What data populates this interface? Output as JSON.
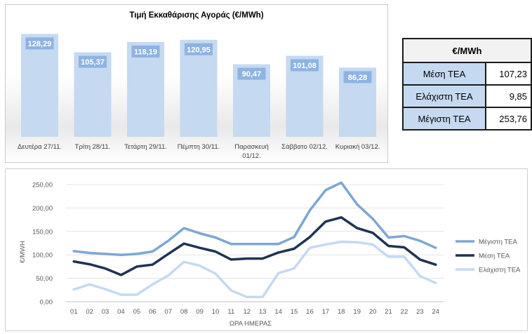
{
  "chart_data": [
    {
      "type": "bar",
      "title": "Τιμή Εκκαθάρισης Αγοράς (€/MWh)",
      "categories": [
        [
          "Δευτέρα 27/11."
        ],
        [
          "Τρίτη 28/11."
        ],
        [
          "Τετάρτη 29/11."
        ],
        [
          "Πέμπτη 30/11."
        ],
        [
          "Παρασκευή",
          "01/12."
        ],
        [
          "Σάββατο 02/12."
        ],
        [
          "Κυριακή 03/12."
        ]
      ],
      "values": [
        128.29,
        105.37,
        118.19,
        120.95,
        90.47,
        101.08,
        86.28
      ],
      "data_labels": [
        "128,29",
        "105,37",
        "118,19",
        "120,95",
        "90,47",
        "101,08",
        "86,28"
      ],
      "ylim": [
        0,
        140
      ],
      "colors": {
        "bar": "#c5d9f1",
        "label_bg": "#8db3e2"
      }
    },
    {
      "type": "line",
      "xlabel": "ΩΡΑ ΗΜΕΡΑΣ",
      "ylabel": "€/MWH",
      "x": [
        "01",
        "02",
        "03",
        "04",
        "05",
        "06",
        "07",
        "08",
        "09",
        "10",
        "11",
        "12",
        "13",
        "14",
        "15",
        "16",
        "17",
        "18",
        "19",
        "20",
        "21",
        "22",
        "23",
        "24"
      ],
      "ylim": [
        0,
        250
      ],
      "yticks": [
        "0,00",
        "50,00",
        "100,00",
        "150,00",
        "200,00",
        "250,00"
      ],
      "grid": true,
      "legend": "right",
      "series": [
        {
          "name": "Μέγιστη ΤΕΑ",
          "color": "#7ea6d4",
          "values": [
            108,
            104,
            102,
            100,
            102,
            107,
            130,
            157,
            146,
            137,
            123,
            123,
            123,
            123,
            138,
            195,
            238,
            254,
            208,
            177,
            137,
            140,
            130,
            115
          ]
        },
        {
          "name": "Μέση ΤΕΑ",
          "color": "#1f3354",
          "values": [
            86,
            80,
            71,
            57,
            75,
            79,
            102,
            124,
            115,
            107,
            90,
            92,
            92,
            105,
            113,
            138,
            171,
            180,
            157,
            147,
            119,
            116,
            90,
            79
          ]
        },
        {
          "name": "Ελάχιστη ΤΕΑ",
          "color": "#c5d9f1",
          "values": [
            26,
            37,
            27,
            15,
            15,
            37,
            56,
            85,
            77,
            60,
            24,
            10,
            10,
            61,
            71,
            115,
            122,
            128,
            127,
            122,
            96,
            96,
            55,
            40
          ]
        }
      ]
    }
  ],
  "table": {
    "header": "€/MWh",
    "rows": [
      {
        "label": "Μέση ΤΕΑ",
        "value": "107,23"
      },
      {
        "label": "Ελάχιστη ΤΕΑ",
        "value": "9,85"
      },
      {
        "label": "Μέγιστη ΤΕΑ",
        "value": "253,76"
      }
    ]
  }
}
